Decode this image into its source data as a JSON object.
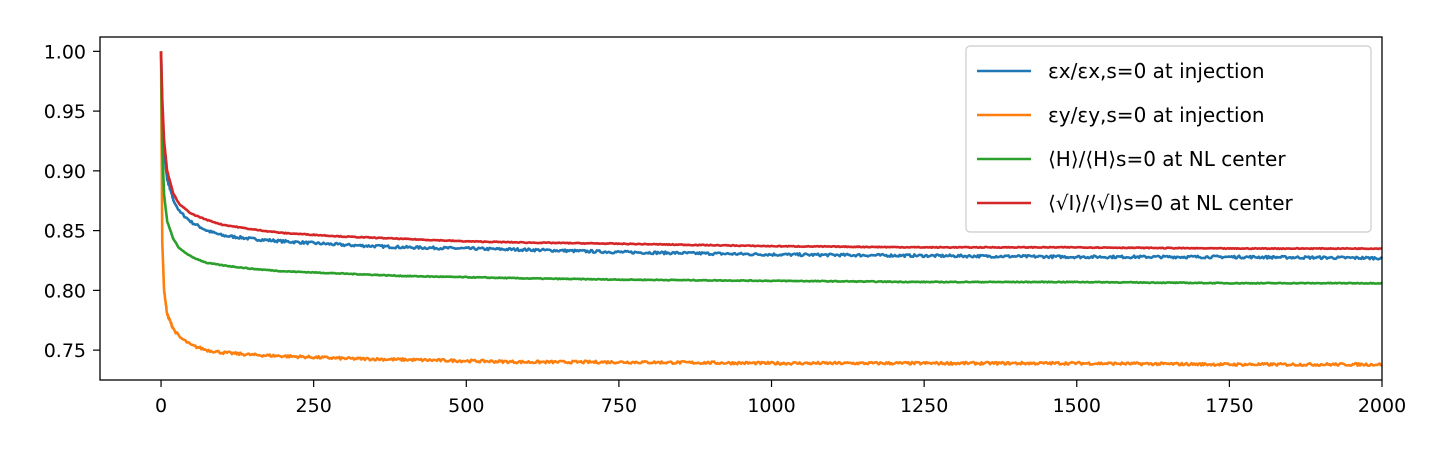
{
  "chart_data": {
    "type": "line",
    "title": "",
    "xlabel": "",
    "ylabel": "",
    "xlim": [
      -100,
      2000
    ],
    "ylim": [
      0.725,
      1.012
    ],
    "xticks": [
      0,
      250,
      500,
      750,
      1000,
      1250,
      1500,
      1750,
      2000
    ],
    "yticks": [
      0.75,
      0.8,
      0.85,
      0.9,
      0.95,
      1.0
    ],
    "xtick_labels": [
      "0",
      "250",
      "500",
      "750",
      "1000",
      "1250",
      "1500",
      "1750",
      "2000"
    ],
    "ytick_labels": [
      "0.75",
      "0.80",
      "0.85",
      "0.90",
      "0.95",
      "1.00"
    ],
    "grid": false,
    "legend_position": "top-right",
    "series": [
      {
        "name": "εx/εx,s=0 at injection",
        "color": "#1f77b4",
        "noisy": true,
        "x": [
          0,
          2,
          5,
          10,
          20,
          30,
          50,
          75,
          100,
          150,
          200,
          300,
          400,
          500,
          600,
          750,
          1000,
          1250,
          1500,
          1750,
          2000
        ],
        "y": [
          1.0,
          0.95,
          0.915,
          0.893,
          0.876,
          0.866,
          0.857,
          0.85,
          0.846,
          0.843,
          0.841,
          0.838,
          0.836,
          0.835,
          0.834,
          0.832,
          0.83,
          0.829,
          0.828,
          0.828,
          0.827
        ]
      },
      {
        "name": "εy/εy,s=0 at injection",
        "color": "#ff7f0e",
        "noisy": true,
        "x": [
          0,
          2,
          5,
          10,
          20,
          30,
          50,
          75,
          100,
          150,
          200,
          300,
          400,
          500,
          600,
          750,
          1000,
          1250,
          1500,
          1750,
          2000
        ],
        "y": [
          1.0,
          0.84,
          0.8,
          0.78,
          0.768,
          0.761,
          0.754,
          0.75,
          0.748,
          0.746,
          0.745,
          0.743,
          0.742,
          0.741,
          0.74,
          0.74,
          0.739,
          0.739,
          0.739,
          0.738,
          0.738
        ]
      },
      {
        "name": "⟨H⟩/⟨H⟩s=0 at NL center",
        "color": "#2ca02c",
        "noisy": false,
        "x": [
          0,
          2,
          5,
          10,
          20,
          30,
          50,
          75,
          100,
          150,
          200,
          300,
          400,
          500,
          600,
          750,
          1000,
          1250,
          1500,
          1750,
          2000
        ],
        "y": [
          1.0,
          0.92,
          0.88,
          0.858,
          0.843,
          0.835,
          0.828,
          0.823,
          0.821,
          0.818,
          0.816,
          0.814,
          0.812,
          0.811,
          0.81,
          0.809,
          0.808,
          0.807,
          0.807,
          0.806,
          0.806
        ]
      },
      {
        "name": "⟨√I⟩/⟨√I⟩s=0 at NL center",
        "color": "#d62728",
        "noisy": false,
        "x": [
          0,
          2,
          5,
          10,
          20,
          30,
          50,
          75,
          100,
          150,
          200,
          300,
          400,
          500,
          600,
          750,
          1000,
          1250,
          1500,
          1750,
          2000
        ],
        "y": [
          1.0,
          0.96,
          0.925,
          0.9,
          0.881,
          0.872,
          0.864,
          0.859,
          0.855,
          0.851,
          0.848,
          0.845,
          0.843,
          0.841,
          0.84,
          0.839,
          0.837,
          0.836,
          0.836,
          0.835,
          0.835
        ]
      }
    ]
  }
}
